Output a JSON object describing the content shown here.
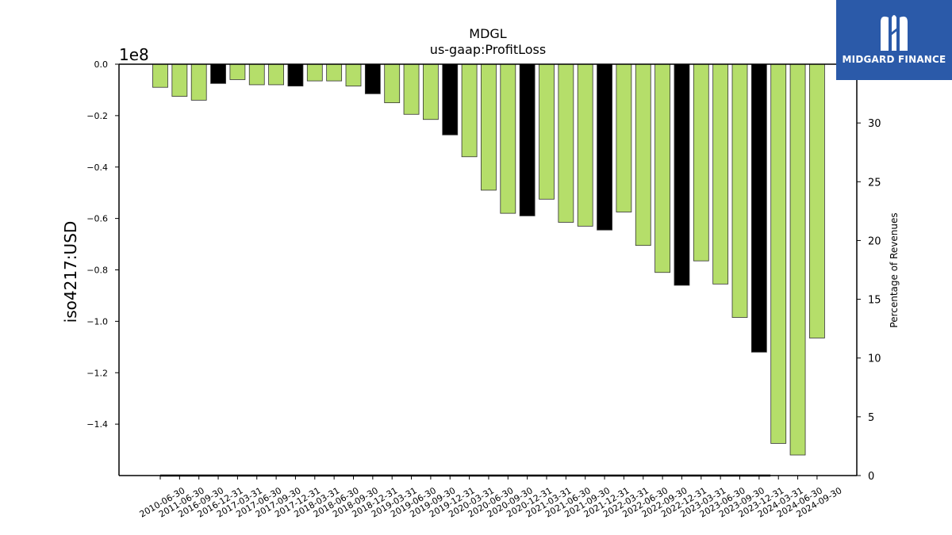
{
  "logo": {
    "text": "MIDGARD FINANCE"
  },
  "chart_data": {
    "type": "bar",
    "title": "MDGL",
    "subtitle": "us-gaap:ProfitLoss",
    "ylabel": "iso4217:USD",
    "y2label": "Percentage of Revenues",
    "y_scale_note": "1e8",
    "ylim": [
      -1.6,
      0
    ],
    "y2lim": [
      0,
      35
    ],
    "yticks": [
      "0.0",
      "−0.2",
      "−0.4",
      "−0.6",
      "−0.8",
      "−1.0",
      "−1.2",
      "−1.4"
    ],
    "y2ticks": [
      "0",
      "5",
      "10",
      "15",
      "20",
      "25",
      "30"
    ],
    "categories": [
      "2010-06-30",
      "2011-06-30",
      "2016-09-30",
      "2016-12-31",
      "2017-03-31",
      "2017-06-30",
      "2017-09-30",
      "2017-12-31",
      "2018-03-31",
      "2018-06-30",
      "2018-09-30",
      "2018-12-31",
      "2019-03-31",
      "2019-06-30",
      "2019-09-30",
      "2019-12-31",
      "2020-03-31",
      "2020-06-30",
      "2020-09-30",
      "2020-12-31",
      "2021-03-31",
      "2021-06-30",
      "2021-09-30",
      "2021-12-31",
      "2022-03-31",
      "2022-06-30",
      "2022-09-30",
      "2022-12-31",
      "2023-03-31",
      "2023-06-30",
      "2023-09-30",
      "2023-12-31",
      "2024-03-31",
      "2024-06-30",
      "2024-09-30"
    ],
    "values": [
      -0.09,
      -0.125,
      -0.14,
      -0.075,
      -0.06,
      -0.08,
      -0.08,
      -0.085,
      -0.065,
      -0.065,
      -0.085,
      -0.115,
      -0.15,
      -0.195,
      -0.215,
      -0.275,
      -0.36,
      -0.49,
      -0.58,
      -0.59,
      -0.525,
      -0.615,
      -0.63,
      -0.645,
      -0.575,
      -0.705,
      -0.81,
      -0.86,
      -0.765,
      -0.855,
      -0.985,
      -1.12,
      -1.475,
      -1.52,
      -1.065
    ],
    "bar_colors": [
      "#b5de6a",
      "#b5de6a",
      "#b5de6a",
      "#000000",
      "#b5de6a",
      "#b5de6a",
      "#b5de6a",
      "#000000",
      "#b5de6a",
      "#b5de6a",
      "#b5de6a",
      "#000000",
      "#b5de6a",
      "#b5de6a",
      "#b5de6a",
      "#000000",
      "#b5de6a",
      "#b5de6a",
      "#b5de6a",
      "#000000",
      "#b5de6a",
      "#b5de6a",
      "#b5de6a",
      "#000000",
      "#b5de6a",
      "#b5de6a",
      "#b5de6a",
      "#000000",
      "#b5de6a",
      "#b5de6a",
      "#b5de6a",
      "#000000",
      "#b5de6a",
      "#b5de6a",
      "#b5de6a"
    ],
    "colors": {
      "quarter": "#b5de6a",
      "annual": "#000000",
      "edge": "#333333"
    },
    "grid": false
  }
}
